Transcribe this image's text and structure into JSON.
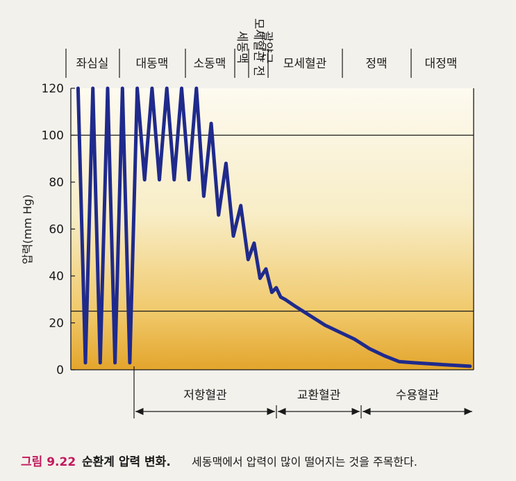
{
  "regions": [
    "좌심실",
    "대동맥",
    "소동맥",
    "세동맥",
    "모세혈관 전\n괄약근",
    "모세혈관",
    "정맥",
    "대정맥"
  ],
  "chart_data": {
    "type": "line",
    "ylabel": "압력(mm Hg)",
    "xlabel": "",
    "ylim": [
      0,
      120
    ],
    "yticks": [
      "0",
      "20",
      "40",
      "60",
      "80",
      "100",
      "120"
    ],
    "reference_lines": [
      100,
      25
    ],
    "series": [
      {
        "values": [
          120,
          3,
          120,
          3,
          120,
          3,
          120,
          3,
          120,
          81,
          120,
          81,
          120,
          81,
          120,
          81,
          120,
          74,
          105,
          66,
          88,
          57,
          70,
          47,
          54,
          39,
          43,
          33,
          35,
          31,
          30,
          27,
          23,
          19,
          16,
          13,
          9,
          6,
          3.5,
          3,
          2.6,
          2.2,
          1.8,
          1.5
        ],
        "x": [
          0.3,
          0.8,
          1.3,
          1.8,
          2.3,
          2.8,
          3.3,
          3.8,
          4.3,
          4.8,
          5.3,
          5.8,
          6.3,
          6.8,
          7.3,
          7.8,
          8.3,
          8.8,
          9.3,
          9.8,
          10.3,
          10.8,
          11.3,
          11.8,
          12.2,
          12.6,
          13.0,
          13.4,
          13.7,
          14.0,
          14.3,
          15.0,
          16.0,
          17.0,
          18.0,
          19.0,
          20.0,
          21.0,
          22.0,
          23.0,
          24.0,
          25.0,
          26.0,
          26.8
        ]
      }
    ],
    "vessel_groups": [
      {
        "label": "저항혈관"
      },
      {
        "label": "교환혈관"
      },
      {
        "label": "수용혈관"
      }
    ]
  },
  "caption": {
    "figure": "그림 9.22",
    "title": "순환계 압력 변화.",
    "text": "세동맥에서 압력이 많이 떨어지는 것을 주목한다."
  },
  "colors": {
    "gradient_top": "#fdfaf0",
    "gradient_bottom": "#e6a92f",
    "line": "#1f2a8c",
    "caption_accent": "#c2185b"
  }
}
